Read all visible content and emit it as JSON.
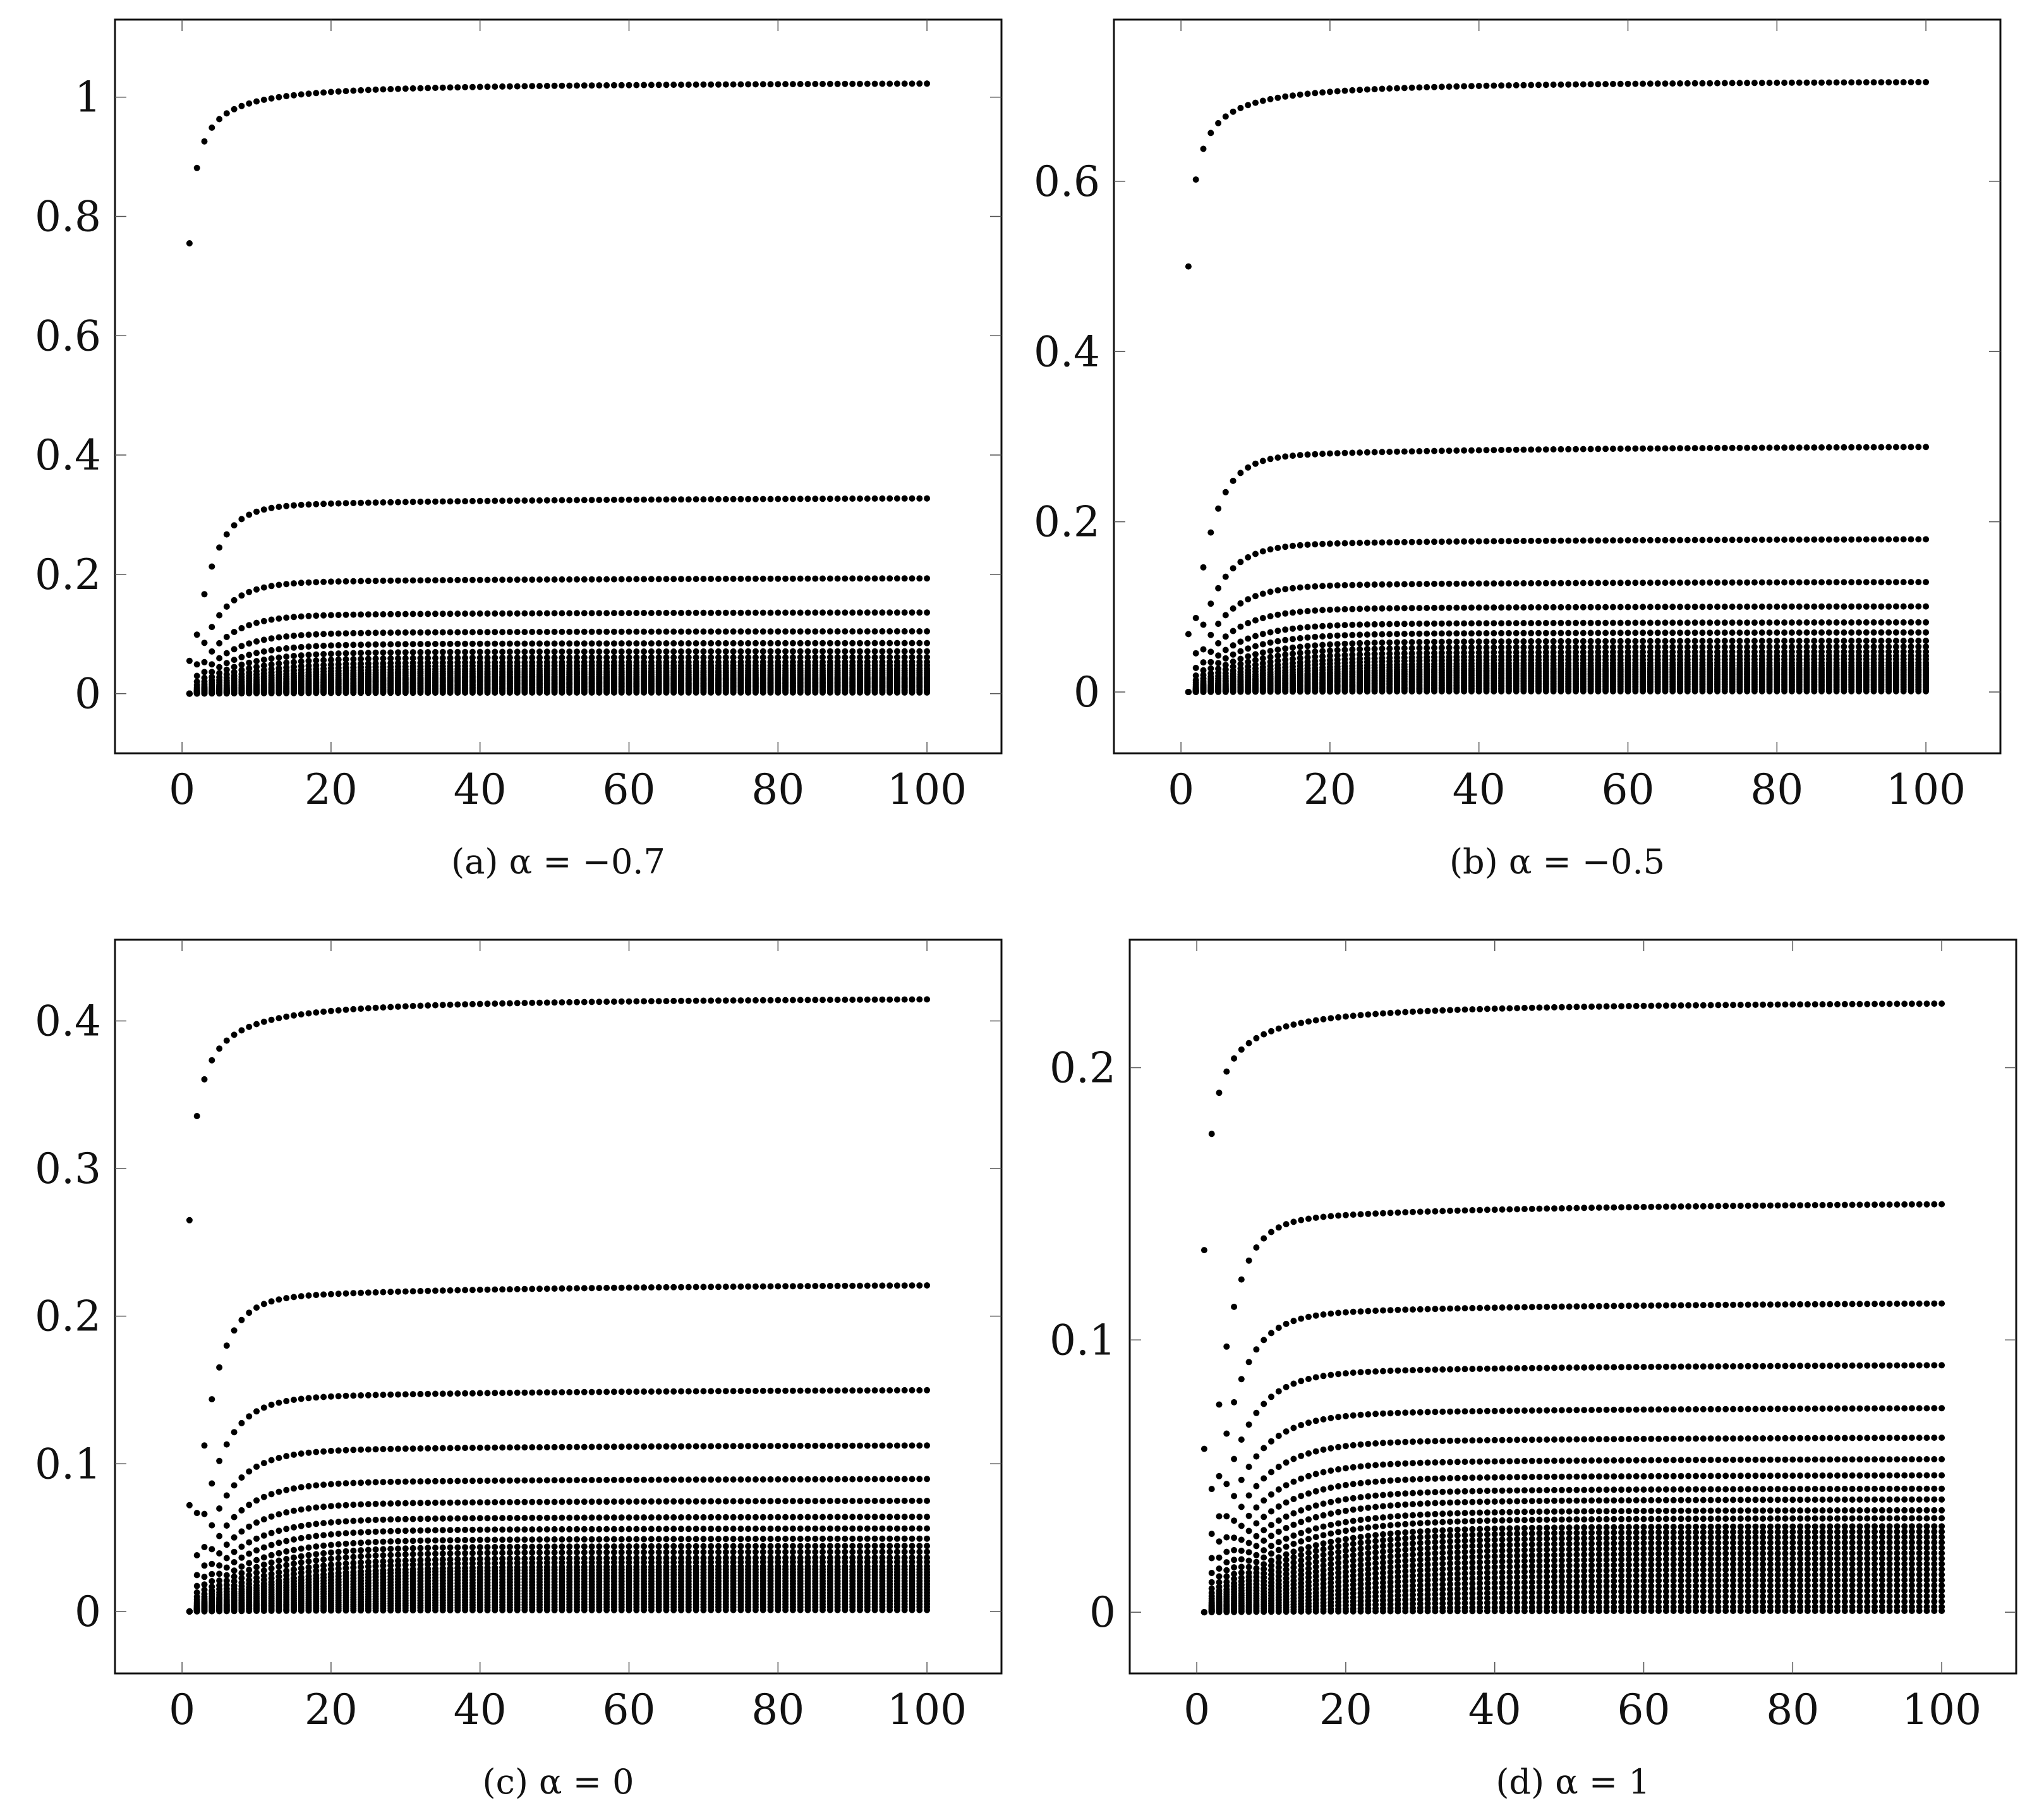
{
  "chart_data": [
    {
      "id": "a",
      "type": "scatter",
      "caption": "(a) α = −0.7",
      "xlim": [
        -9,
        110
      ],
      "ylim": [
        -0.1,
        1.13
      ],
      "xticks": [
        0,
        20,
        40,
        60,
        80,
        100
      ],
      "xtick_labels": [
        "0",
        "20",
        "40",
        "60",
        "80",
        "100"
      ],
      "yticks": [
        0,
        0.2,
        0.4,
        0.6,
        0.8,
        1
      ],
      "ytick_labels": [
        "0",
        "0.2",
        "0.4",
        "0.6",
        "0.8",
        "1"
      ],
      "x_range": [
        1,
        100
      ],
      "limits": [
        1.027,
        0.332,
        0.196,
        0.138,
        0.106,
        0.086,
        0.072,
        0.062,
        0.054,
        0.048,
        0.043,
        0.039,
        0.036,
        0.033,
        0.03,
        0.028,
        0.026,
        0.024,
        0.022,
        0.02,
        0.018,
        0.016,
        0.014,
        0.012,
        0.01,
        0.008,
        0.006,
        0.004,
        0.002
      ],
      "first_values": [
        0.755,
        0.055
      ],
      "decay": 2.5,
      "grid": false,
      "legend": "none"
    },
    {
      "id": "b",
      "type": "scatter",
      "caption": "(b) α = −0.5",
      "xlim": [
        -9,
        110
      ],
      "ylim": [
        -0.072,
        0.79
      ],
      "xticks": [
        0,
        20,
        40,
        60,
        80,
        100
      ],
      "xtick_labels": [
        "0",
        "20",
        "40",
        "60",
        "80",
        "100"
      ],
      "yticks": [
        0,
        0.2,
        0.4,
        0.6
      ],
      "ytick_labels": [
        "0",
        "0.2",
        "0.4",
        "0.6"
      ],
      "x_range": [
        1,
        100
      ],
      "limits": [
        0.72,
        0.292,
        0.182,
        0.131,
        0.102,
        0.083,
        0.071,
        0.061,
        0.054,
        0.048,
        0.043,
        0.039,
        0.035,
        0.032,
        0.029,
        0.027,
        0.025,
        0.023,
        0.021,
        0.019,
        0.017,
        0.015,
        0.013,
        0.011,
        0.009,
        0.007,
        0.005,
        0.003,
        0.001
      ],
      "first_values": [
        0.5,
        0.068
      ],
      "decay": 3.0,
      "grid": false,
      "legend": "none"
    },
    {
      "id": "c",
      "type": "scatter",
      "caption": "(c) α = 0",
      "xlim": [
        -9,
        110
      ],
      "ylim": [
        -0.042,
        0.455
      ],
      "xticks": [
        0,
        20,
        40,
        60,
        80,
        100
      ],
      "xtick_labels": [
        "0",
        "20",
        "40",
        "60",
        "80",
        "100"
      ],
      "yticks": [
        0,
        0.1,
        0.2,
        0.3,
        0.4
      ],
      "ytick_labels": [
        "0",
        "0.1",
        "0.2",
        "0.3",
        "0.4"
      ],
      "x_range": [
        1,
        100
      ],
      "limits": [
        0.417,
        0.224,
        0.152,
        0.114,
        0.091,
        0.076,
        0.065,
        0.057,
        0.05,
        0.045,
        0.041,
        0.037,
        0.034,
        0.031,
        0.029,
        0.027,
        0.025,
        0.023,
        0.021,
        0.019,
        0.017,
        0.015,
        0.013,
        0.011,
        0.009,
        0.007,
        0.005,
        0.003,
        0.001
      ],
      "first_values": [
        0.265,
        0.072
      ],
      "decay": 3.5,
      "grid": false,
      "legend": "none"
    },
    {
      "id": "d",
      "type": "scatter",
      "caption": "(d) α = 1",
      "xlim": [
        -9,
        110
      ],
      "ylim": [
        -0.0225,
        0.247
      ],
      "xticks": [
        0,
        20,
        40,
        60,
        80,
        100
      ],
      "xtick_labels": [
        "0",
        "20",
        "40",
        "60",
        "80",
        "100"
      ],
      "yticks": [
        0,
        0.1,
        0.2
      ],
      "ytick_labels": [
        "0",
        "0.1",
        "0.2"
      ],
      "x_range": [
        1,
        100
      ],
      "limits": [
        0.225,
        0.152,
        0.115,
        0.092,
        0.076,
        0.065,
        0.057,
        0.051,
        0.046,
        0.042,
        0.038,
        0.035,
        0.032,
        0.03,
        0.028,
        0.026,
        0.024,
        0.022,
        0.02,
        0.018,
        0.016,
        0.014,
        0.012,
        0.01,
        0.008,
        0.006,
        0.004,
        0.002,
        0.0005
      ],
      "first_values": [
        0.133,
        0.06
      ],
      "decay": 4.5,
      "grid": false,
      "legend": "none"
    }
  ]
}
